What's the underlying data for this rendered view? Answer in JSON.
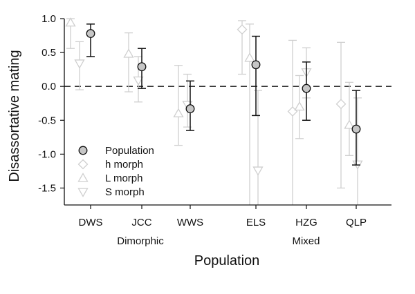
{
  "chart_data": {
    "type": "scatter",
    "xlabel": "Population",
    "ylabel": "Disassortative mating",
    "ylim": [
      -1.75,
      1.0
    ],
    "yticks": [
      "1.0",
      "0.5",
      "0.0",
      "-0.5",
      "-1.0",
      "-1.5"
    ],
    "categories": [
      "DWS",
      "JCC",
      "WWS",
      "ELS",
      "HZG",
      "QLP"
    ],
    "groups": [
      {
        "label": "Dimorphic",
        "categories": [
          "DWS",
          "JCC",
          "WWS"
        ]
      },
      {
        "label": "Mixed",
        "categories": [
          "ELS",
          "HZG",
          "QLP"
        ]
      }
    ],
    "reference_line": 0.0,
    "legend_position": "bottom-left",
    "series": [
      {
        "name": "Population",
        "marker": "circle",
        "color": "#111111",
        "fill": "#c6c6c6",
        "points": [
          {
            "category": "DWS",
            "y": 0.78,
            "lo": 0.44,
            "hi": 0.92
          },
          {
            "category": "JCC",
            "y": 0.29,
            "lo": -0.03,
            "hi": 0.56
          },
          {
            "category": "WWS",
            "y": -0.33,
            "lo": -0.65,
            "hi": 0.08
          },
          {
            "category": "ELS",
            "y": 0.32,
            "lo": -0.43,
            "hi": 0.74
          },
          {
            "category": "HZG",
            "y": -0.03,
            "lo": -0.5,
            "hi": 0.36
          },
          {
            "category": "QLP",
            "y": -0.63,
            "lo": -1.16,
            "hi": -0.06
          }
        ]
      },
      {
        "name": "h morph",
        "marker": "diamond",
        "color": "#cfcfcf",
        "points": [
          {
            "category": "ELS",
            "y": 0.84,
            "lo": 0.18,
            "hi": 0.97
          },
          {
            "category": "HZG",
            "y": -0.37,
            "lo": -1.75,
            "hi": 0.68
          },
          {
            "category": "QLP",
            "y": -0.26,
            "lo": -1.5,
            "hi": 0.65
          }
        ]
      },
      {
        "name": "L morph",
        "marker": "triangle-up",
        "color": "#cfcfcf",
        "points": [
          {
            "category": "DWS",
            "y": 0.94,
            "lo": 0.56,
            "hi": 1.0
          },
          {
            "category": "JCC",
            "y": 0.48,
            "lo": -0.08,
            "hi": 0.79
          },
          {
            "category": "WWS",
            "y": -0.4,
            "lo": -0.87,
            "hi": 0.31
          },
          {
            "category": "ELS",
            "y": 0.42,
            "lo": -1.75,
            "hi": 0.92
          },
          {
            "category": "HZG",
            "y": -0.3,
            "lo": -0.77,
            "hi": 0.16
          },
          {
            "category": "QLP",
            "y": -0.57,
            "lo": -1.02,
            "hi": 0.06
          }
        ]
      },
      {
        "name": "S morph",
        "marker": "triangle-down",
        "color": "#cfcfcf",
        "points": [
          {
            "category": "DWS",
            "y": 0.34,
            "lo": -0.05,
            "hi": 0.66
          },
          {
            "category": "JCC",
            "y": 0.09,
            "lo": -0.23,
            "hi": 0.44
          },
          {
            "category": "WWS",
            "y": -0.27,
            "lo": -0.6,
            "hi": 0.18
          },
          {
            "category": "ELS",
            "y": -1.24,
            "lo": -1.75,
            "hi": -0.06
          },
          {
            "category": "HZG",
            "y": 0.21,
            "lo": -0.17,
            "hi": 0.57
          },
          {
            "category": "QLP",
            "y": -1.15,
            "lo": -1.75,
            "hi": -0.17
          }
        ]
      }
    ]
  }
}
